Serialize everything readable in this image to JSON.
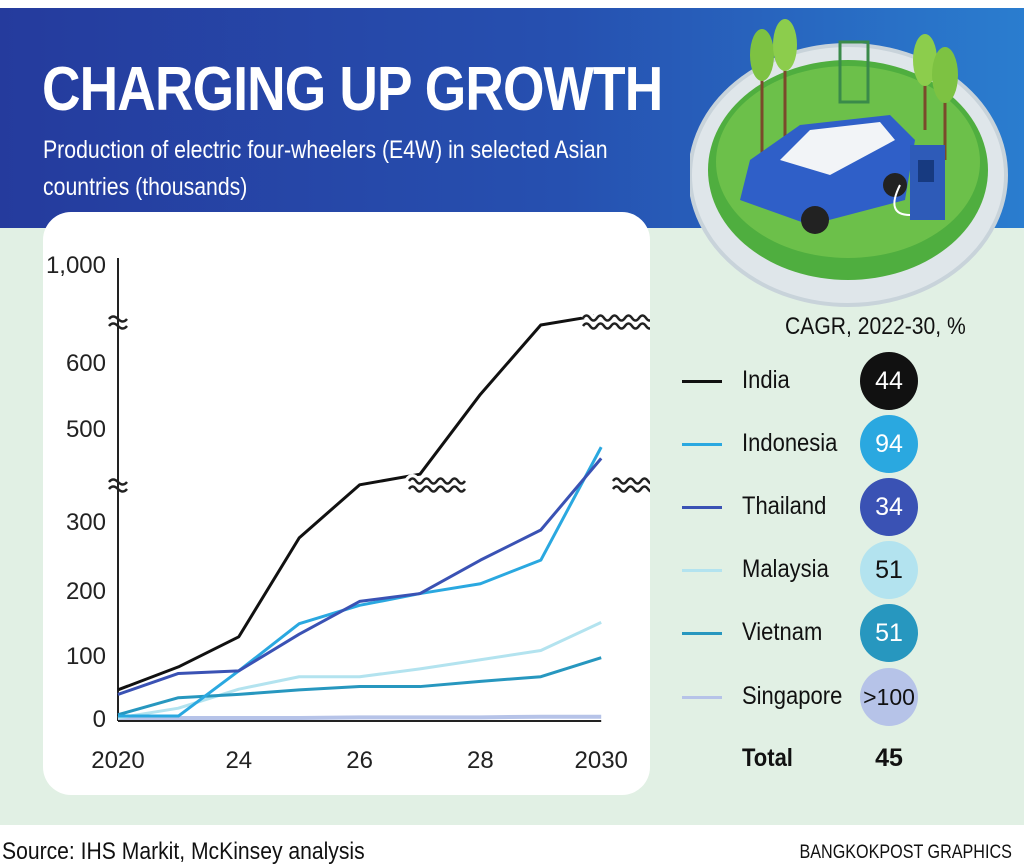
{
  "header": {
    "title": "CHARGING UP GROWTH",
    "subtitle": "Production of electric four-wheelers (E4W) in selected Asian countries (thousands)"
  },
  "chart_data": {
    "type": "line",
    "title": "CHARGING UP GROWTH",
    "ylabel": "Production of E4W (thousands)",
    "xlabel": "",
    "point_index": [
      0,
      1,
      2,
      3,
      4,
      5,
      6,
      7,
      8
    ],
    "x_ticks": [
      {
        "label": "2020",
        "index": 0
      },
      {
        "label": "24",
        "index": 2
      },
      {
        "label": "26",
        "index": 4
      },
      {
        "label": "28",
        "index": 6
      },
      {
        "label": "2030",
        "index": 8
      }
    ],
    "y_ticks": [
      "0",
      "100",
      "200",
      "300",
      "500",
      "600",
      "1,000"
    ],
    "y_tick_values": [
      0,
      100,
      200,
      300,
      500,
      600,
      1000
    ],
    "axis_breaks": [
      [
        356,
        420
      ],
      [
        660,
        985
      ]
    ],
    "ylim": [
      0,
      1000
    ],
    "grid": false,
    "series": [
      {
        "name": "India",
        "color": "#111111",
        "values": [
          43,
          78,
          124,
          275,
          356,
          430,
          551,
          656,
          700
        ]
      },
      {
        "name": "Indonesia",
        "color": "#2aa8e0",
        "values": [
          3,
          3,
          72,
          144,
          172,
          190,
          205,
          241,
          471
        ]
      },
      {
        "name": "Thailand",
        "color": "#3a52b4",
        "values": [
          36,
          68,
          72,
          128,
          178,
          190,
          241,
          287,
          454
        ]
      },
      {
        "name": "Malaysia",
        "color": "#b3e3ef",
        "values": [
          0,
          15,
          44,
          63,
          63,
          75,
          89,
          103,
          146
        ]
      },
      {
        "name": "Vietnam",
        "color": "#2797bf",
        "values": [
          5,
          31,
          36,
          43,
          48,
          48,
          56,
          63,
          92
        ]
      },
      {
        "name": "Singapore",
        "color": "#b6c3e8",
        "values": [
          0,
          0,
          0,
          0,
          1,
          1,
          1,
          2,
          2
        ]
      }
    ]
  },
  "legend": {
    "title": "CAGR, 2022-30, %",
    "items": [
      {
        "name": "India",
        "cagr": "44",
        "color": "#111111",
        "text_color": "#ffffff"
      },
      {
        "name": "Indonesia",
        "cagr": "94",
        "color": "#2aa8e0",
        "text_color": "#ffffff"
      },
      {
        "name": "Thailand",
        "cagr": "34",
        "color": "#3a52b4",
        "text_color": "#ffffff"
      },
      {
        "name": "Malaysia",
        "cagr": "51",
        "color": "#b3e3ef",
        "text_color": "#111111"
      },
      {
        "name": "Vietnam",
        "cagr": "51",
        "color": "#2797bf",
        "text_color": "#ffffff"
      },
      {
        "name": "Singapore",
        "cagr": ">100",
        "color": "#b6c3e8",
        "text_color": "#111111"
      }
    ],
    "total_label": "Total",
    "total_value": "45"
  },
  "footer": {
    "source": "Source: IHS Markit, McKinsey analysis",
    "credit": "BANGKOKPOST GRAPHICS"
  }
}
